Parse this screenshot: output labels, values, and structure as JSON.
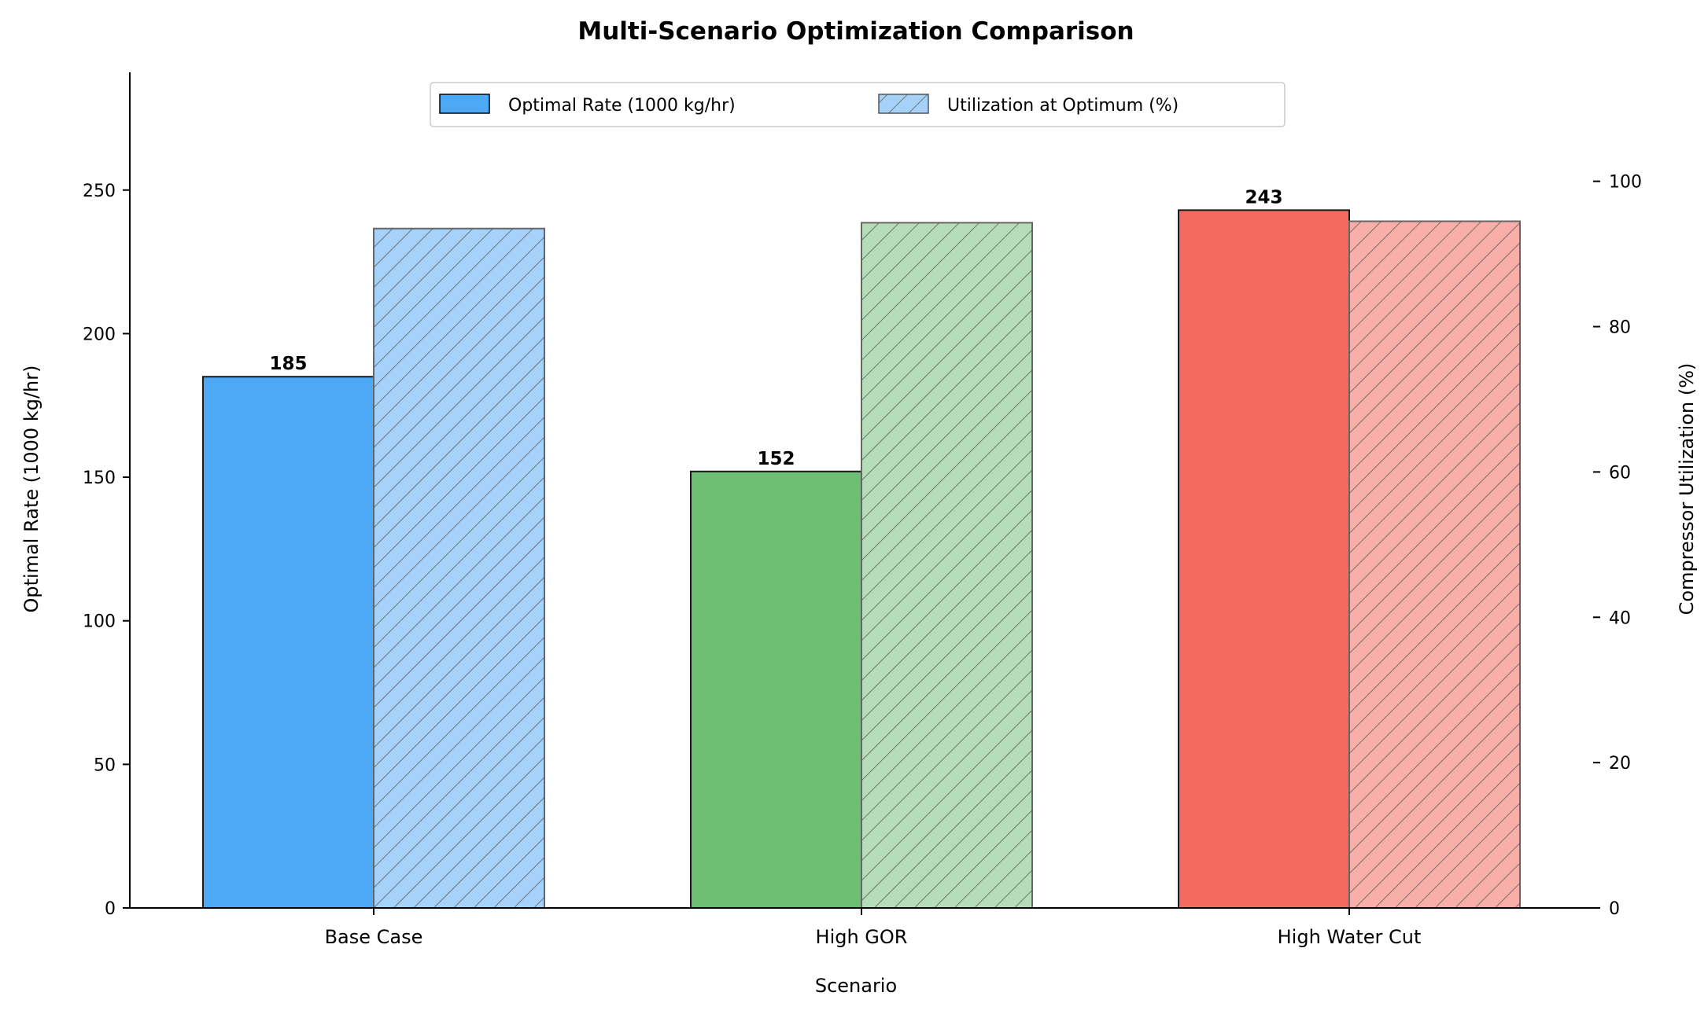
{
  "chart_data": {
    "type": "bar",
    "title": "Multi-Scenario Optimization Comparison",
    "xlabel": "Scenario",
    "ylabel": "Optimal Rate (1000 kg/hr)",
    "y2label": "Compressor Utilization (%)",
    "categories": [
      "Base Case",
      "High GOR",
      "High Water Cut"
    ],
    "ylim": [
      0,
      291
    ],
    "y2lim": [
      0,
      115
    ],
    "yticks": [
      0,
      50,
      100,
      150,
      200,
      250
    ],
    "y2ticks": [
      0,
      20,
      40,
      60,
      80,
      100
    ],
    "series": [
      {
        "name": "Optimal Rate (1000 kg/hr)",
        "axis": "left",
        "values": [
          185,
          152,
          243
        ],
        "data_labels": [
          "185",
          "152",
          "243"
        ],
        "colors": [
          "#4DA8F5",
          "#6EBF73",
          "#F56A5F"
        ]
      },
      {
        "name": "Utilization at Optimum (%)",
        "axis": "right",
        "values": [
          93.5,
          94.3,
          94.5
        ],
        "pattern": "hatch",
        "colors": [
          "#A6D2F9",
          "#B5DDB7",
          "#F9AFA9"
        ]
      }
    ],
    "legend": {
      "position": "top-center",
      "entries": [
        "Optimal Rate (1000 kg/hr)",
        "Utilization at Optimum (%)"
      ],
      "swatch_colors": [
        "#4DA8F5",
        "#A6D2F9"
      ]
    },
    "grid": false
  }
}
